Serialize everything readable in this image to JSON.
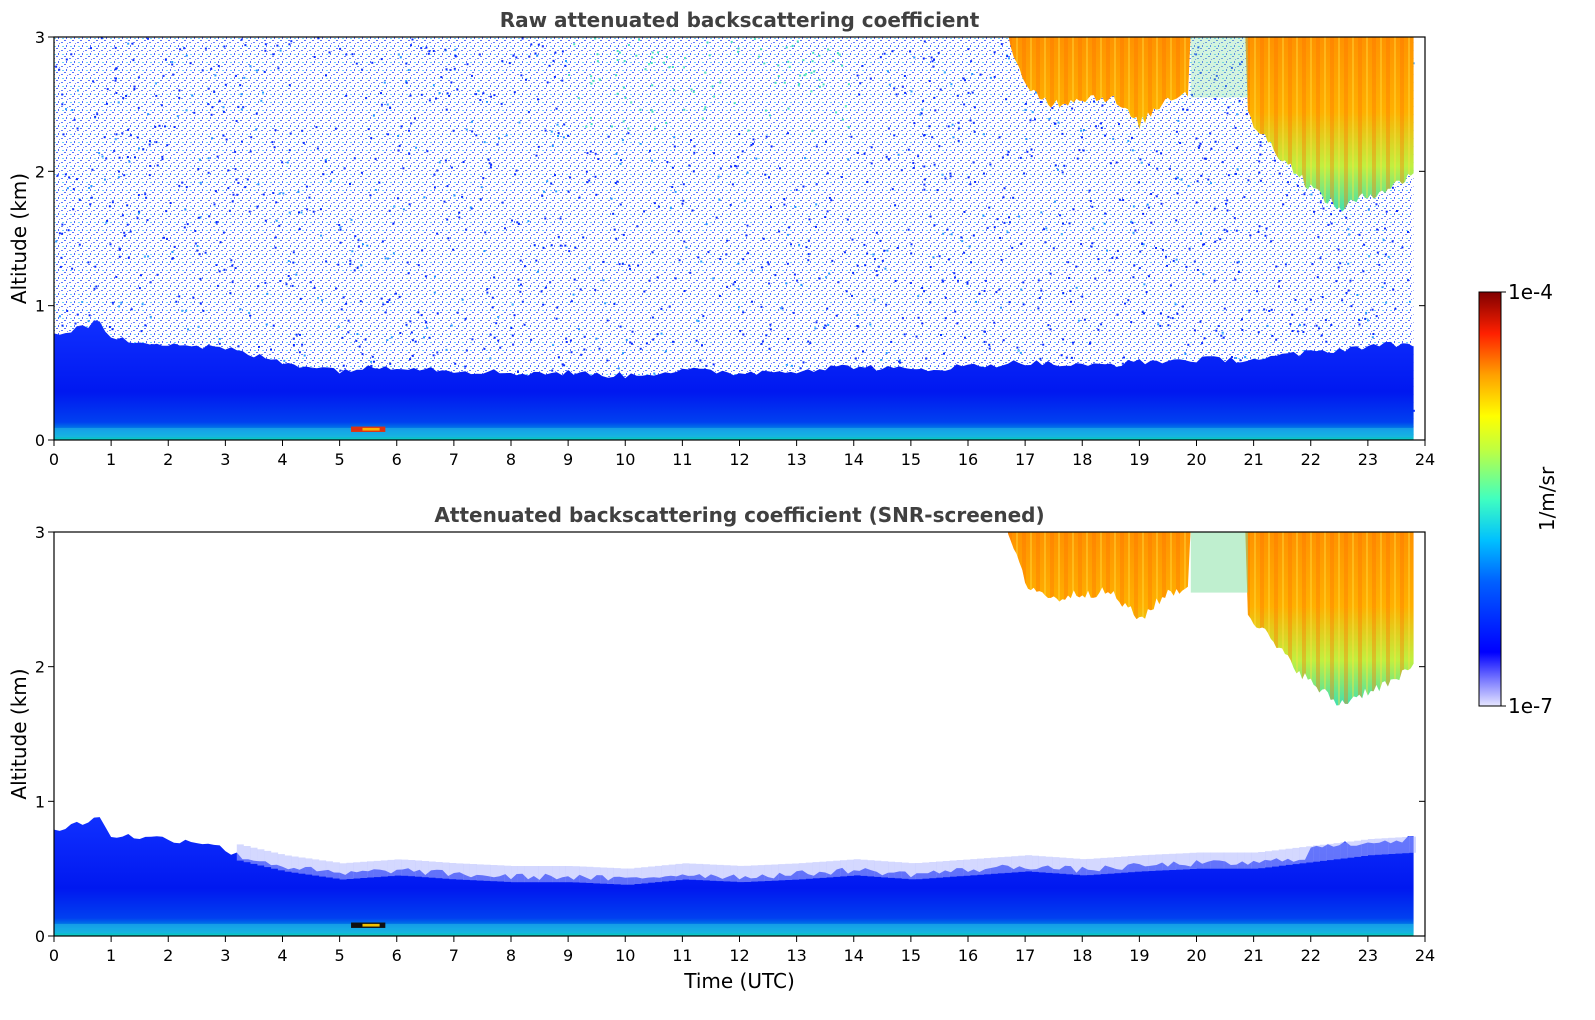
{
  "chart_data": [
    {
      "type": "heatmap",
      "title": "Raw attenuated backscattering coefficient",
      "xlabel": "",
      "ylabel": "Altitude (km)",
      "xlim": [
        0,
        24
      ],
      "ylim": [
        0,
        3
      ],
      "xticks": [
        "0",
        "1",
        "2",
        "3",
        "4",
        "5",
        "6",
        "7",
        "8",
        "9",
        "10",
        "11",
        "12",
        "13",
        "14",
        "15",
        "16",
        "17",
        "18",
        "19",
        "20",
        "21",
        "22",
        "23",
        "24"
      ],
      "yticks": [
        "0",
        "1",
        "2",
        "3"
      ],
      "screened": false,
      "boundary_layer_top_km": [
        [
          0,
          0.78
        ],
        [
          0.8,
          0.88
        ],
        [
          1,
          0.75
        ],
        [
          2,
          0.72
        ],
        [
          3,
          0.68
        ],
        [
          4,
          0.58
        ],
        [
          5,
          0.52
        ],
        [
          6,
          0.55
        ],
        [
          7,
          0.52
        ],
        [
          8,
          0.5
        ],
        [
          9,
          0.5
        ],
        [
          10,
          0.48
        ],
        [
          11,
          0.52
        ],
        [
          12,
          0.5
        ],
        [
          13,
          0.52
        ],
        [
          14,
          0.55
        ],
        [
          15,
          0.52
        ],
        [
          16,
          0.55
        ],
        [
          17,
          0.58
        ],
        [
          18,
          0.55
        ],
        [
          19,
          0.58
        ],
        [
          20,
          0.6
        ],
        [
          21,
          0.6
        ],
        [
          22,
          0.65
        ],
        [
          23,
          0.7
        ],
        [
          23.8,
          0.72
        ]
      ],
      "cloud_base_km": [
        [
          16.7,
          3.0
        ],
        [
          17,
          2.62
        ],
        [
          17.5,
          2.5
        ],
        [
          18,
          2.55
        ],
        [
          18.5,
          2.55
        ],
        [
          19,
          2.35
        ],
        [
          19.5,
          2.55
        ],
        [
          20,
          2.6
        ],
        [
          20.5,
          2.7
        ],
        [
          21,
          2.35
        ],
        [
          21.5,
          2.1
        ],
        [
          22,
          1.88
        ],
        [
          22.5,
          1.72
        ],
        [
          23,
          1.82
        ],
        [
          23.5,
          1.9
        ],
        [
          23.8,
          2.0
        ]
      ],
      "cloud_gap_hours": [
        [
          19.9,
          20.9
        ]
      ]
    },
    {
      "type": "heatmap",
      "title": "Attenuated backscattering coefficient (SNR-screened)",
      "xlabel": "Time (UTC)",
      "ylabel": "Altitude (km)",
      "xlim": [
        0,
        24
      ],
      "ylim": [
        0,
        3
      ],
      "xticks": [
        "0",
        "1",
        "2",
        "3",
        "4",
        "5",
        "6",
        "7",
        "8",
        "9",
        "10",
        "11",
        "12",
        "13",
        "14",
        "15",
        "16",
        "17",
        "18",
        "19",
        "20",
        "21",
        "22",
        "23",
        "24"
      ],
      "yticks": [
        "0",
        "1",
        "2",
        "3"
      ],
      "screened": true,
      "boundary_layer_top_km": [
        [
          0,
          0.78
        ],
        [
          0.8,
          0.88
        ],
        [
          1,
          0.75
        ],
        [
          2,
          0.72
        ],
        [
          3,
          0.68
        ],
        [
          4,
          0.58
        ],
        [
          5,
          0.52
        ],
        [
          6,
          0.55
        ],
        [
          7,
          0.52
        ],
        [
          8,
          0.5
        ],
        [
          9,
          0.5
        ],
        [
          10,
          0.48
        ],
        [
          11,
          0.52
        ],
        [
          12,
          0.5
        ],
        [
          13,
          0.52
        ],
        [
          14,
          0.55
        ],
        [
          15,
          0.52
        ],
        [
          16,
          0.55
        ],
        [
          17,
          0.58
        ],
        [
          18,
          0.55
        ],
        [
          19,
          0.58
        ],
        [
          20,
          0.6
        ],
        [
          21,
          0.6
        ],
        [
          22,
          0.65
        ],
        [
          23,
          0.7
        ],
        [
          23.8,
          0.72
        ]
      ],
      "cloud_base_km": [
        [
          16.7,
          3.0
        ],
        [
          17,
          2.62
        ],
        [
          17.5,
          2.5
        ],
        [
          18,
          2.55
        ],
        [
          18.5,
          2.55
        ],
        [
          19,
          2.35
        ],
        [
          19.5,
          2.55
        ],
        [
          20,
          2.6
        ],
        [
          20.5,
          2.7
        ],
        [
          21,
          2.35
        ],
        [
          21.5,
          2.1
        ],
        [
          22,
          1.88
        ],
        [
          22.5,
          1.72
        ],
        [
          23,
          1.82
        ],
        [
          23.5,
          1.9
        ],
        [
          23.8,
          2.0
        ]
      ],
      "cloud_gap_hours": [
        [
          19.9,
          20.9
        ]
      ]
    }
  ],
  "colorbar": {
    "label": "1/m/sr",
    "min_label": "1e-7",
    "max_label": "1e-4",
    "colormap": "jet",
    "colors": [
      "#e6e6ff",
      "#0000ff",
      "#00a0ff",
      "#00ffff",
      "#80ff80",
      "#ffff00",
      "#ff8000",
      "#ff0000",
      "#800000"
    ]
  }
}
